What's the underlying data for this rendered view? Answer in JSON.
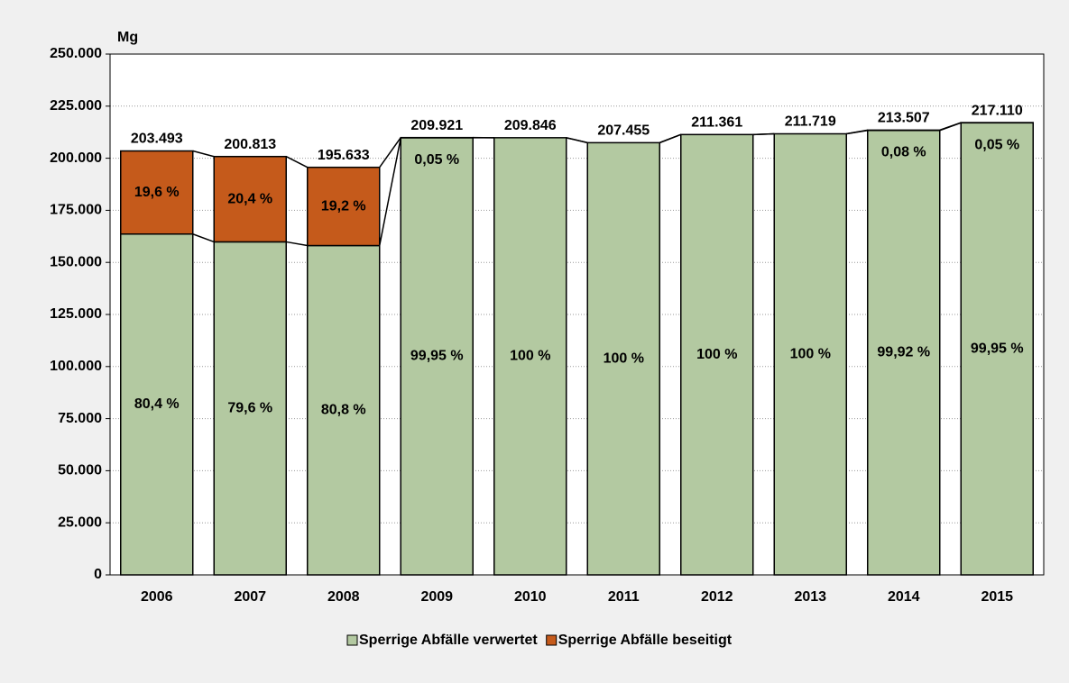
{
  "chart_data": {
    "type": "stacked-bar",
    "y_label": "Mg",
    "categories": [
      "2006",
      "2007",
      "2008",
      "2009",
      "2010",
      "2011",
      "2012",
      "2013",
      "2014",
      "2015"
    ],
    "series": [
      {
        "name": "Sperrige Abfälle verwertet",
        "color": "#b3c9a1",
        "values": [
          163608,
          159847,
          158071,
          209816,
          209846,
          207455,
          211361,
          211719,
          213336,
          217001
        ],
        "percents": [
          80.4,
          79.6,
          80.8,
          99.95,
          100,
          100,
          100,
          100,
          99.92,
          99.95
        ],
        "percent_labels": [
          "80,4 %",
          "79,6 %",
          "80,8 %",
          "99,95 %",
          "100 %",
          "100 %",
          "100 %",
          "100 %",
          "99,92 %",
          "99,95 %"
        ]
      },
      {
        "name": "Sperrige Abfälle beseitigt",
        "color": "#c55a1b",
        "values": [
          39885,
          40966,
          37562,
          105,
          0,
          0,
          0,
          0,
          171,
          109
        ],
        "percents": [
          19.6,
          20.4,
          19.2,
          0.05,
          null,
          null,
          null,
          null,
          0.08,
          0.05
        ],
        "percent_labels": [
          "19,6 %",
          "20,4 %",
          "19,2 %",
          "0,05 %",
          null,
          null,
          null,
          null,
          "0,08 %",
          "0,05 %"
        ]
      }
    ],
    "totals": {
      "values": [
        203493,
        200813,
        195633,
        209921,
        209846,
        207455,
        211361,
        211719,
        213507,
        217110
      ],
      "value_labels": [
        "203.493",
        "200.813",
        "195.633",
        "209.921",
        "209.846",
        "207.455",
        "211.361",
        "211.719",
        "213.507",
        "217.110"
      ]
    },
    "ylim": [
      0,
      250000
    ],
    "yticks": [
      {
        "value": 0,
        "label": "0"
      },
      {
        "value": 25000,
        "label": "25.000"
      },
      {
        "value": 50000,
        "label": "50.000"
      },
      {
        "value": 75000,
        "label": "75.000"
      },
      {
        "value": 100000,
        "label": "100.000"
      },
      {
        "value": 125000,
        "label": "125.000"
      },
      {
        "value": 150000,
        "label": "150.000"
      },
      {
        "value": 175000,
        "label": "175.000"
      },
      {
        "value": 200000,
        "label": "200.000"
      },
      {
        "value": 225000,
        "label": "225.000"
      },
      {
        "value": 250000,
        "label": "250.000"
      }
    ],
    "grid": true,
    "legend": "bottom"
  }
}
